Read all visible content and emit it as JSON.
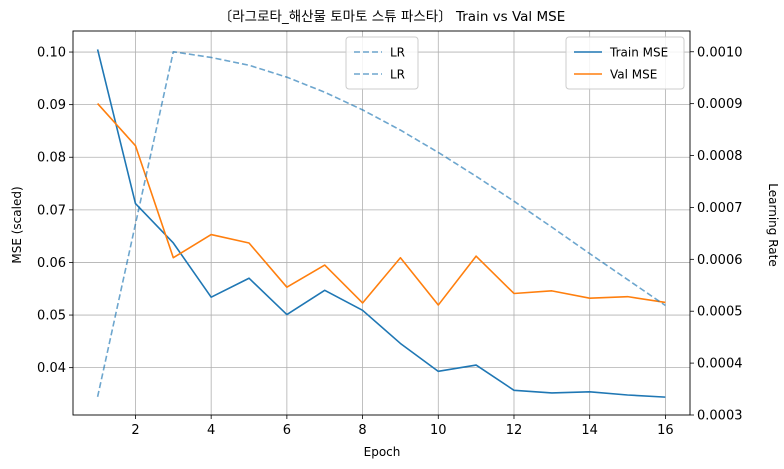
{
  "chart_data": {
    "type": "line",
    "title": "〔라그로타_해산물 토마토 스튜 파스타〕 Train vs Val MSE",
    "xlabel": "Epoch",
    "ylabel": "MSE (scaled)",
    "y2label": "Learning Rate",
    "xlim": [
      0.35,
      16.65
    ],
    "ylim": [
      0.031,
      0.104
    ],
    "y2lim": [
      0.0003,
      0.00104
    ],
    "x_ticks": [
      2,
      4,
      6,
      8,
      10,
      12,
      14,
      16
    ],
    "y_ticks": [
      0.04,
      0.05,
      0.06,
      0.07,
      0.08,
      0.09,
      0.1
    ],
    "y_tick_labels": [
      "0.04",
      "0.05",
      "0.06",
      "0.07",
      "0.08",
      "0.09",
      "0.10"
    ],
    "y2_ticks": [
      0.0003,
      0.0004,
      0.0005,
      0.0006,
      0.0007,
      0.0008,
      0.0009,
      0.001
    ],
    "y2_tick_labels": [
      "0.0003",
      "0.0004",
      "0.0005",
      "0.0006",
      "0.0007",
      "0.0008",
      "0.0009",
      "0.0010"
    ],
    "grid": true,
    "x": [
      1,
      2,
      3,
      4,
      5,
      6,
      7,
      8,
      9,
      10,
      11,
      12,
      13,
      14,
      15,
      16
    ],
    "series": [
      {
        "name": "Train MSE",
        "axis": "left",
        "color": "#1f77b4",
        "dash": false,
        "values": [
          0.1005,
          0.0712,
          0.0637,
          0.0534,
          0.057,
          0.0501,
          0.0547,
          0.0509,
          0.0446,
          0.0393,
          0.0405,
          0.0357,
          0.0352,
          0.0354,
          0.0348,
          0.0344
        ]
      },
      {
        "name": "Val MSE",
        "axis": "left",
        "color": "#ff7f0e",
        "dash": false,
        "values": [
          0.0902,
          0.0822,
          0.0609,
          0.0653,
          0.0637,
          0.0553,
          0.0595,
          0.0523,
          0.0609,
          0.0519,
          0.0612,
          0.0541,
          0.0546,
          0.0532,
          0.0535,
          0.0524
        ]
      },
      {
        "name": "LR",
        "axis": "right",
        "color": "#1f77b4",
        "dash": true,
        "alpha": 0.65,
        "values": [
          0.000335,
          0.000668,
          0.001,
          0.000989,
          0.000974,
          0.000951,
          0.000922,
          0.000888,
          0.000849,
          0.000806,
          0.00076,
          0.000712,
          0.000662,
          0.000611,
          0.000561,
          0.000511
        ]
      }
    ],
    "legend_left": {
      "placement": "top-center",
      "entries": [
        "LR",
        "LR"
      ]
    },
    "legend_right": {
      "placement": "top-right",
      "entries": [
        "Train MSE",
        "Val MSE"
      ]
    }
  }
}
